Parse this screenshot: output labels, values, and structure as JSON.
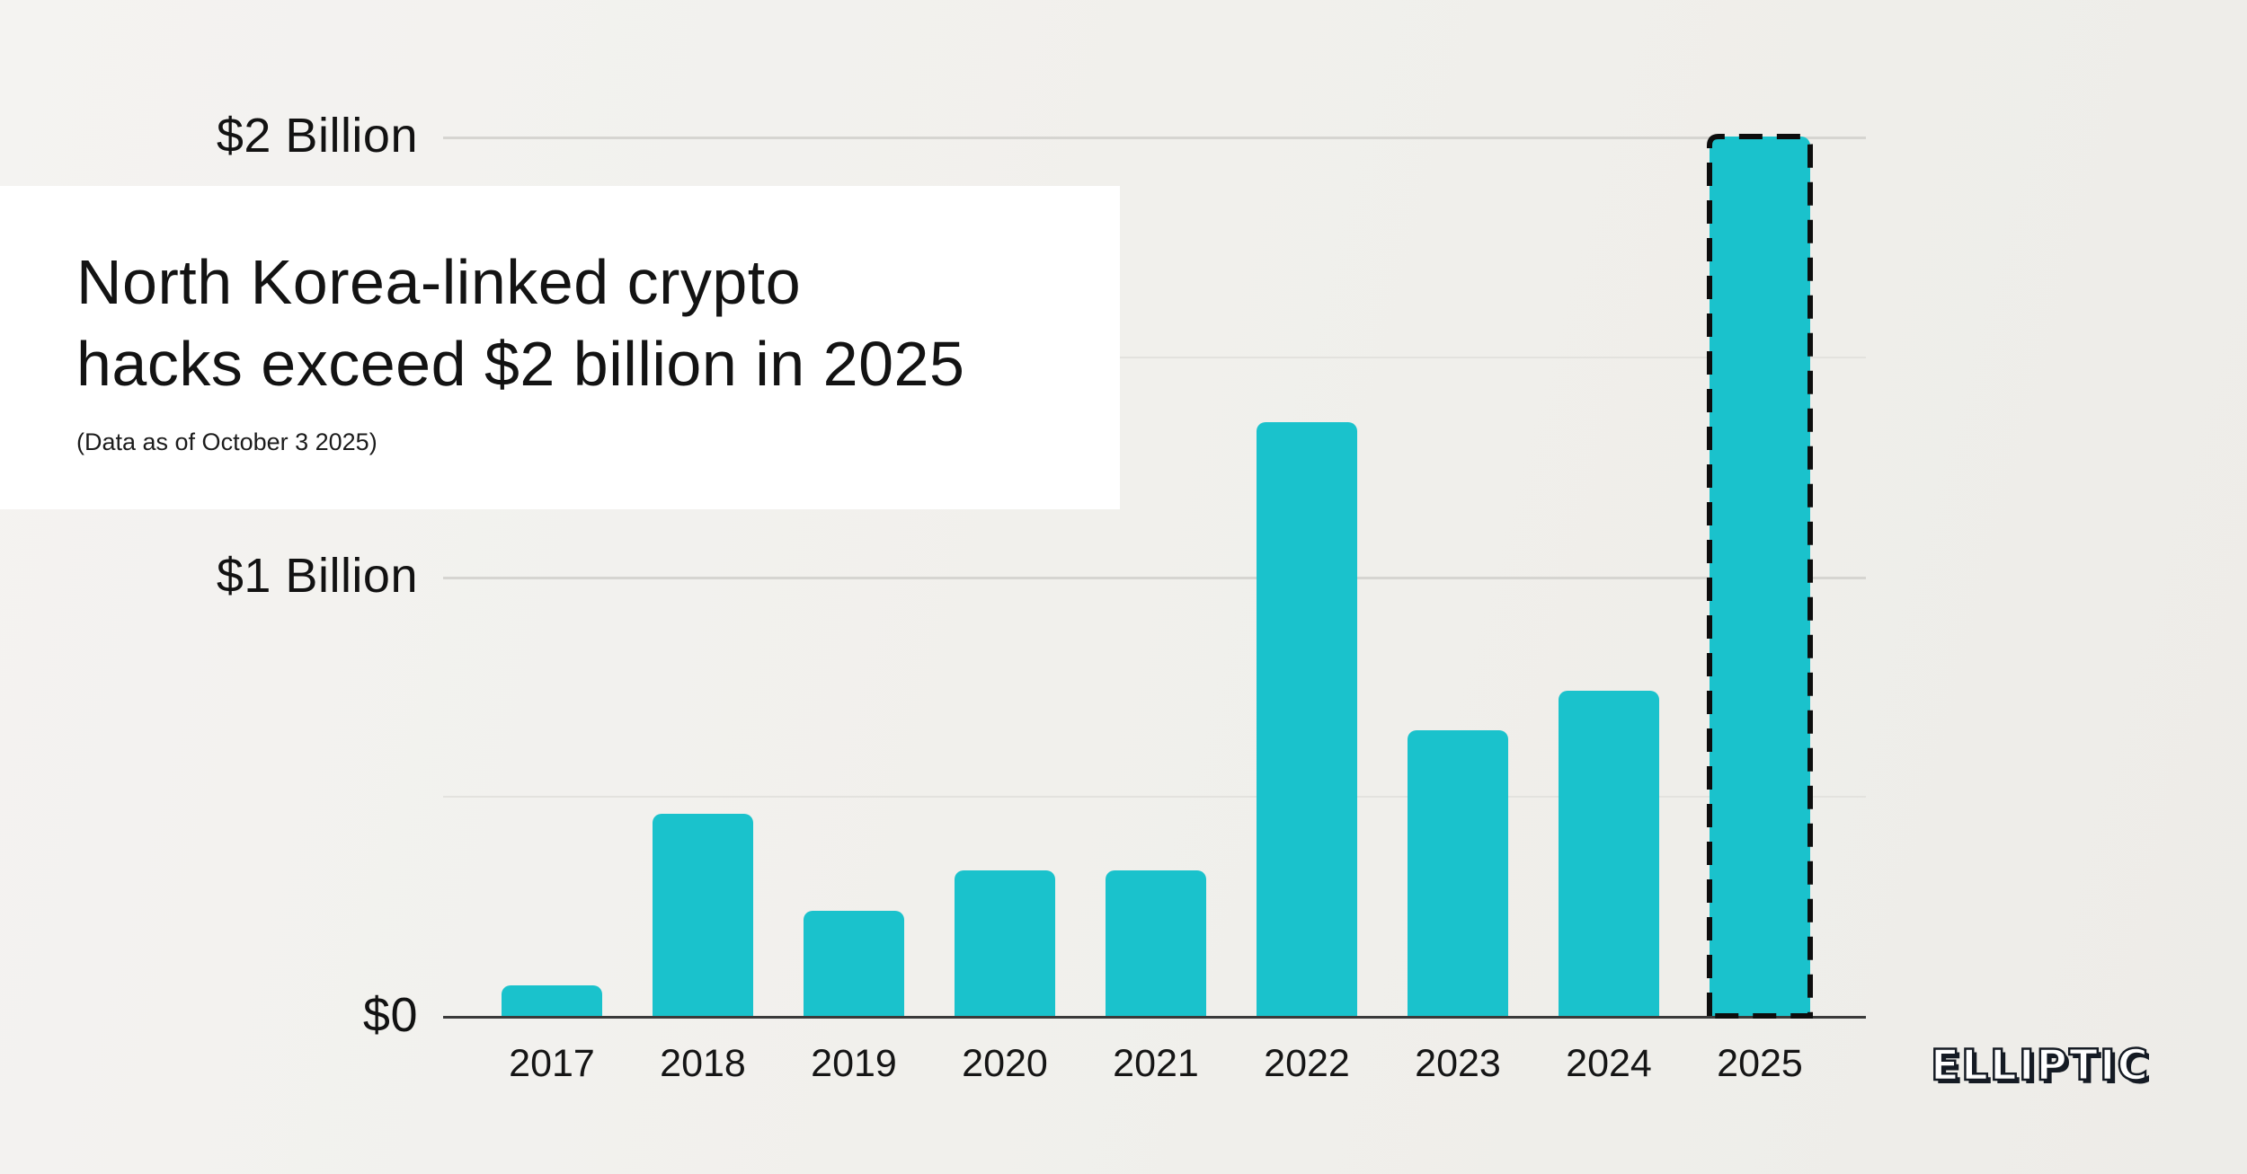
{
  "title_card": {
    "title_line1": "North Korea-linked crypto",
    "title_line2": "hacks exceed $2 billion in 2025",
    "subtitle": "(Data as of October 3 2025)"
  },
  "logo": {
    "text": "ELLIPTIC"
  },
  "colors": {
    "background": "#f1f0ec",
    "card": "#ffffff",
    "bar": "#1ac2cc",
    "axis_baseline": "#3a3a3a",
    "gridline_major": "#d6d5d1",
    "gridline_minor": "#e3e2de",
    "highlight_outline": "#0d0d0d",
    "text": "#131313",
    "logo_dark": "#151b24"
  },
  "chart_data": {
    "type": "bar",
    "title": "North Korea-linked crypto hacks exceed $2 billion in 2025",
    "subtitle": "(Data as of October 3 2025)",
    "unit": "USD billions",
    "categories": [
      "2017",
      "2018",
      "2019",
      "2020",
      "2021",
      "2022",
      "2023",
      "2024",
      "2025"
    ],
    "values": [
      0.07,
      0.46,
      0.24,
      0.33,
      0.33,
      1.35,
      0.65,
      0.74,
      2.0
    ],
    "xlabel": "",
    "ylabel": "",
    "ylim": [
      0,
      2.05
    ],
    "yticks": [
      {
        "value": 0,
        "label": "$0"
      },
      {
        "value": 1,
        "label": "$1 Billion"
      },
      {
        "value": 2,
        "label": "$2 Billion"
      }
    ],
    "minor_gridlines": [
      0.5,
      1.5
    ],
    "grid": "horizontal",
    "legend": "none",
    "highlighted_category": "2025",
    "highlight_style": "black dashed outline"
  }
}
